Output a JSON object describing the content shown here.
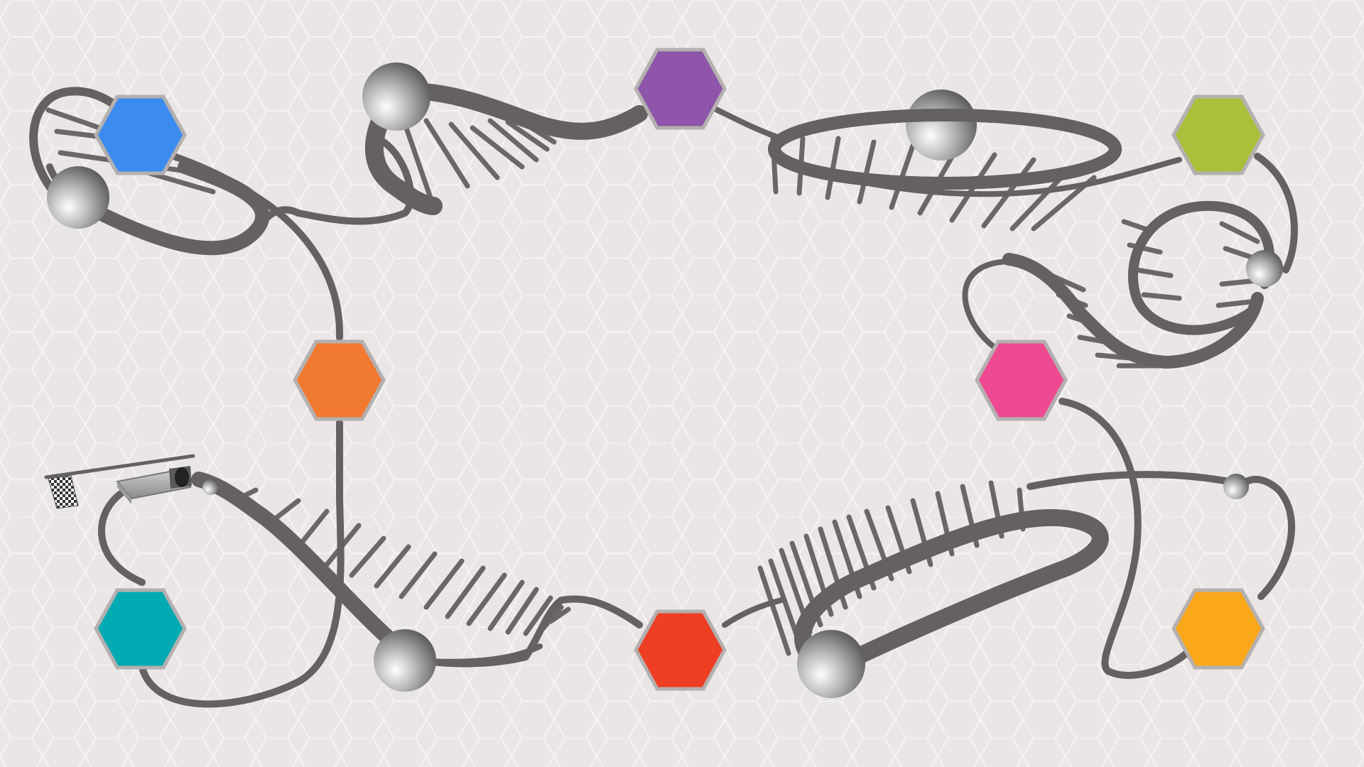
{
  "colors": {
    "background": "#e9e6e5",
    "honeycomb_line": "#f6f4f3",
    "track": "#646160",
    "hex_border": "#b4b0af"
  },
  "nodes": [
    {
      "id": "blue",
      "color": "#3c8cf0"
    },
    {
      "id": "purple",
      "color": "#8e55aa"
    },
    {
      "id": "lime",
      "color": "#aac03a"
    },
    {
      "id": "orange",
      "color": "#f27930"
    },
    {
      "id": "pink",
      "color": "#ee4a92"
    },
    {
      "id": "teal",
      "color": "#00aab3"
    },
    {
      "id": "red",
      "color": "#ee3f24"
    },
    {
      "id": "amber",
      "color": "#faa71a"
    }
  ],
  "icons": {
    "start_tunnel": "launch-tunnel-icon",
    "finish_flag": "checkered-flag-icon",
    "ball": "steel-ball-icon"
  }
}
